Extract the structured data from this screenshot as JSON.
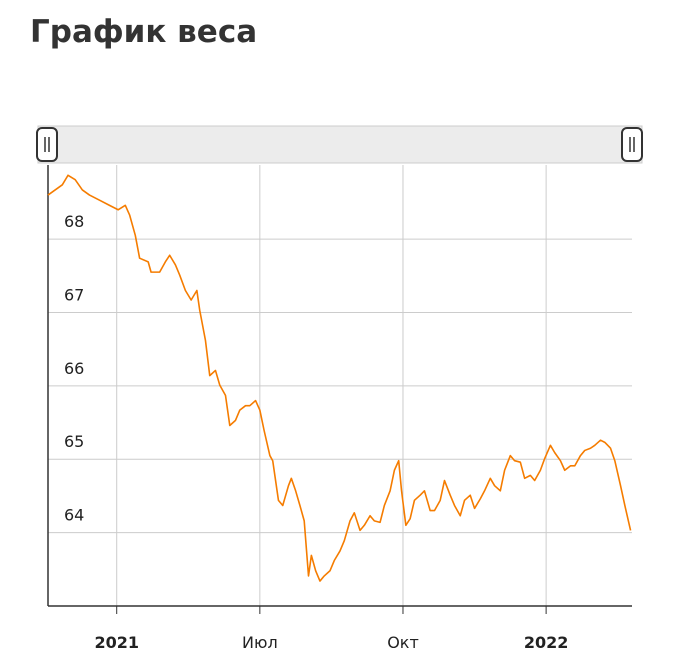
{
  "chart_data": {
    "type": "line",
    "title": "График веса",
    "x": [
      -0.48,
      -0.43,
      -0.38,
      -0.34,
      -0.29,
      -0.24,
      -0.19,
      -0.12,
      -0.05,
      0.01,
      0.06,
      0.09,
      0.13,
      0.16,
      0.22,
      0.24,
      0.3,
      0.34,
      0.37,
      0.41,
      0.44,
      0.48,
      0.52,
      0.56,
      0.58,
      0.62,
      0.65,
      0.69,
      0.72,
      0.76,
      0.79,
      0.83,
      0.86,
      0.9,
      0.93,
      0.97,
      1.0,
      1.03,
      1.07,
      1.09,
      1.13,
      1.16,
      1.2,
      1.22,
      1.25,
      1.28,
      1.31,
      1.34,
      1.36,
      1.39,
      1.42,
      1.45,
      1.49,
      1.52,
      1.56,
      1.59,
      1.63,
      1.66,
      1.7,
      1.73,
      1.77,
      1.8,
      1.84,
      1.87,
      1.91,
      1.94,
      1.97,
      1.99,
      2.02,
      2.05,
      2.08,
      2.12,
      2.15,
      2.19,
      2.22,
      2.26,
      2.29,
      2.33,
      2.36,
      2.4,
      2.43,
      2.47,
      2.5,
      2.54,
      2.57,
      2.61,
      2.64,
      2.68,
      2.71,
      2.75,
      2.78,
      2.82,
      2.85,
      2.89,
      2.92,
      2.96,
      2.99,
      3.03,
      3.06,
      3.1,
      3.13,
      3.17,
      3.2,
      3.24,
      3.27,
      3.31,
      3.34,
      3.38,
      3.41,
      3.45,
      3.48,
      3.52,
      3.55,
      3.59
    ],
    "series": [
      {
        "color": "#f57c00",
        "values": [
          68.6,
          68.67,
          68.74,
          68.87,
          68.81,
          68.67,
          68.6,
          68.53,
          68.46,
          68.4,
          68.46,
          68.33,
          68.05,
          67.74,
          67.69,
          67.55,
          67.55,
          67.69,
          67.78,
          67.65,
          67.51,
          67.3,
          67.17,
          67.3,
          67.03,
          66.62,
          66.14,
          66.21,
          66.01,
          65.87,
          65.46,
          65.53,
          65.67,
          65.73,
          65.73,
          65.8,
          65.67,
          65.39,
          65.05,
          64.98,
          64.44,
          64.37,
          64.64,
          64.74,
          64.57,
          64.37,
          64.16,
          63.41,
          63.69,
          63.48,
          63.34,
          63.41,
          63.48,
          63.62,
          63.75,
          63.89,
          64.16,
          64.27,
          64.03,
          64.1,
          64.23,
          64.16,
          64.14,
          64.37,
          64.57,
          64.85,
          64.98,
          64.57,
          64.1,
          64.19,
          64.44,
          64.51,
          64.57,
          64.3,
          64.3,
          64.44,
          64.71,
          64.51,
          64.37,
          64.23,
          64.44,
          64.51,
          64.33,
          64.46,
          64.57,
          64.74,
          64.64,
          64.57,
          64.85,
          65.05,
          64.98,
          64.96,
          64.74,
          64.78,
          64.71,
          64.85,
          65.01,
          65.19,
          65.09,
          64.98,
          64.85,
          64.91,
          64.91,
          65.05,
          65.12,
          65.15,
          65.19,
          65.26,
          65.23,
          65.15,
          64.98,
          64.64,
          64.37,
          64.03
        ]
      }
    ],
    "xlim": [
      -0.48,
      3.6
    ],
    "xticks": [
      {
        "value": 0,
        "label": "2021"
      },
      {
        "value": 1,
        "label": "Июл"
      },
      {
        "value": 2,
        "label": "Окт"
      },
      {
        "value": 3,
        "label": "2022"
      }
    ],
    "ylim": [
      63,
      69.01
    ],
    "yticks": [
      64,
      65,
      66,
      67,
      68
    ],
    "grid": true
  }
}
